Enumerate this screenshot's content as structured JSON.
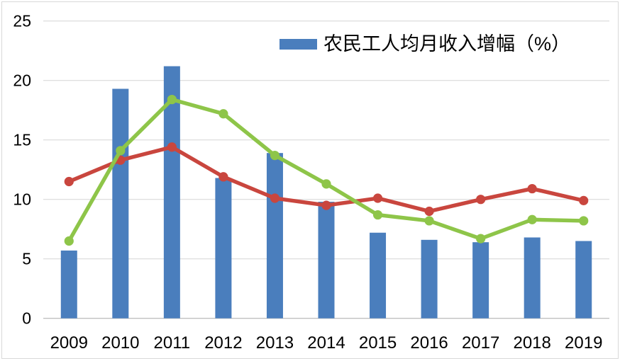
{
  "legend": {
    "entries": [
      {
        "label": "农民工人均月收入增幅（%）",
        "color": "#4A7EBD"
      }
    ]
  },
  "chart_data": {
    "type": "combo",
    "title": "",
    "xlabel": "",
    "ylabel": "",
    "categories": [
      "2009",
      "2010",
      "2011",
      "2012",
      "2013",
      "2014",
      "2015",
      "2016",
      "2017",
      "2018",
      "2019"
    ],
    "series": [
      {
        "id": "bar-series",
        "type": "bar",
        "name": "农民工人均月收入增幅（%）",
        "color": "#4A7EBD",
        "values": [
          5.7,
          19.3,
          21.2,
          11.8,
          13.9,
          9.8,
          7.2,
          6.6,
          6.4,
          6.8,
          6.5
        ]
      },
      {
        "id": "red-line",
        "type": "line",
        "name": "",
        "color": "#C9463E",
        "values": [
          11.5,
          13.3,
          14.4,
          11.9,
          10.1,
          9.5,
          10.1,
          9.0,
          10.0,
          10.9,
          9.9
        ]
      },
      {
        "id": "green-line",
        "type": "line",
        "name": "",
        "color": "#8EC549",
        "values": [
          6.5,
          14.1,
          18.4,
          17.2,
          13.7,
          11.3,
          8.7,
          8.2,
          6.7,
          8.3,
          8.2
        ]
      }
    ],
    "ylim": [
      0,
      25
    ],
    "yticks": [
      0,
      5,
      10,
      15,
      20,
      25
    ],
    "grid": true,
    "legend_position": "top-center",
    "legend_entries": [
      "农民工人均月收入增幅（%）"
    ]
  },
  "colors": {
    "gridline": "#D9D9D9",
    "axis_line": "#C0C0C0",
    "tick_text": "#000000",
    "frame_border": "#D9D9D9",
    "background": "#FFFFFF"
  }
}
